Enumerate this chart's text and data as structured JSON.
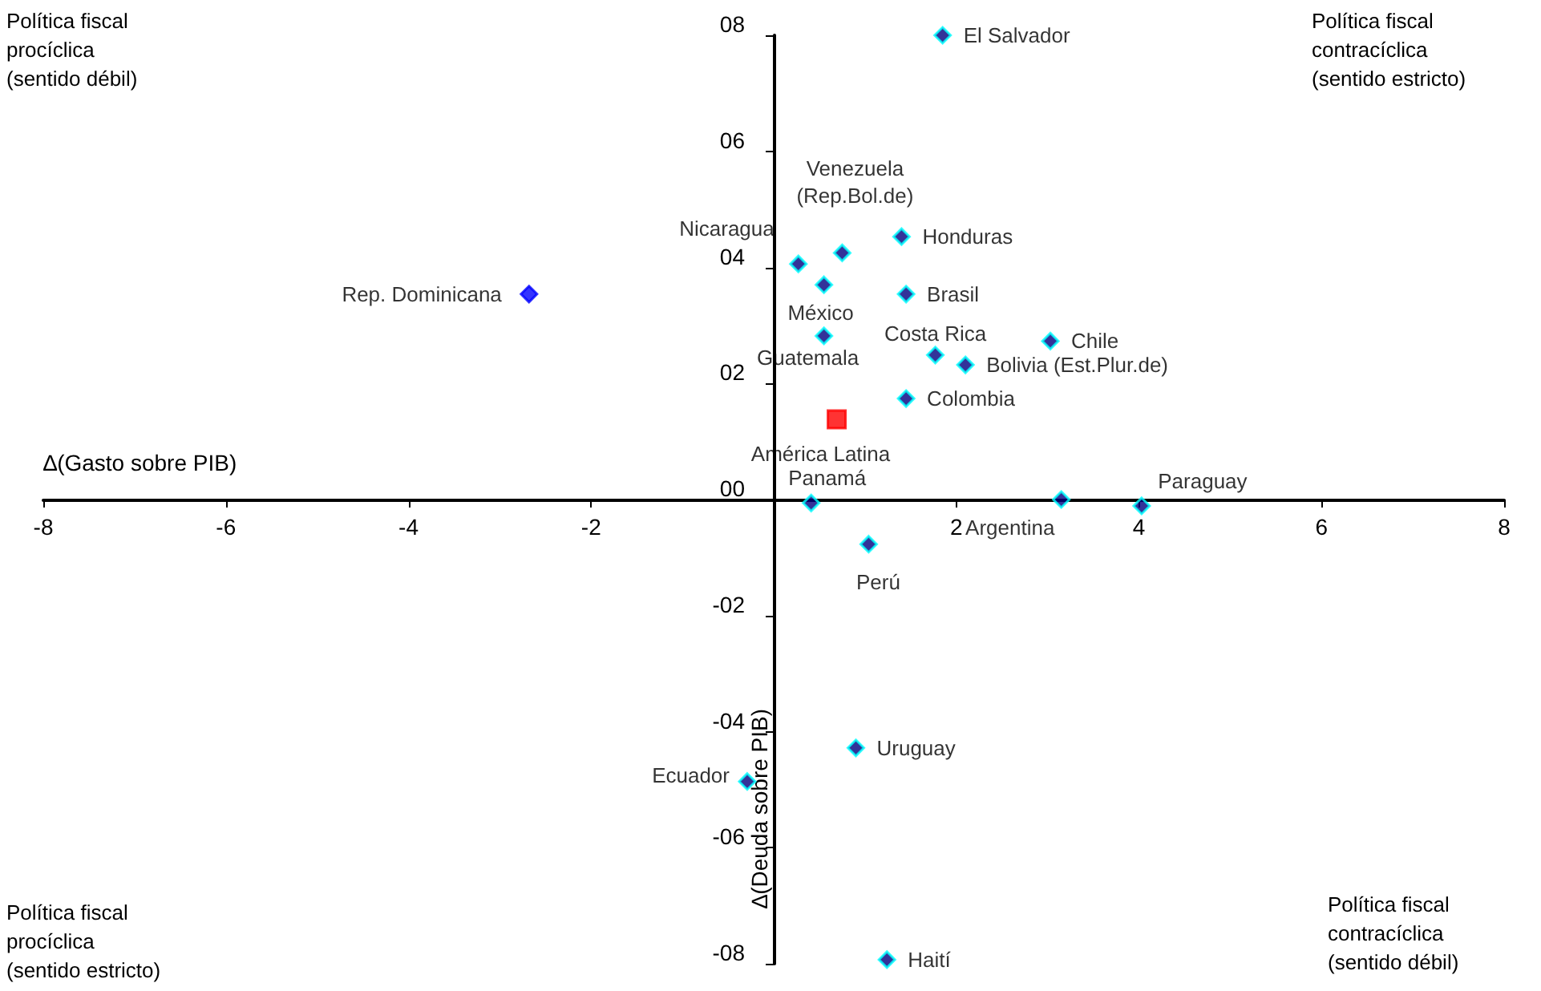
{
  "chart_data": {
    "type": "scatter",
    "xlabel": "∆(Gasto sobre PIB)",
    "ylabel": "∆(Deuda sobre PIB)",
    "xlim": [
      -8,
      8
    ],
    "xticks": [
      -8,
      -6,
      -4,
      -2,
      {
        "value": 0,
        "label": null
      },
      2,
      4,
      6,
      8
    ],
    "ylim": [
      -8,
      8
    ],
    "yticks": [
      {
        "value": -8,
        "label": "-08"
      },
      {
        "value": -6,
        "label": "-06"
      },
      {
        "value": -4,
        "label": "-04"
      },
      {
        "value": -2,
        "label": "-02"
      },
      {
        "value": 0,
        "label": "00"
      },
      {
        "value": 2,
        "label": "02"
      },
      {
        "value": 4,
        "label": "04"
      },
      {
        "value": 6,
        "label": "06"
      },
      {
        "value": 8,
        "label": "08"
      }
    ],
    "grid": false,
    "series": [
      {
        "color": "#000080",
        "marker": "diamond",
        "x": [
          1.85,
          0.75,
          0.27,
          1.4,
          0.55,
          1.45,
          0.55,
          3.03,
          1.77,
          2.1,
          1.45,
          0.41,
          3.15,
          4.03,
          1.04,
          0.9,
          -0.29,
          1.24
        ],
        "values": [
          8.0,
          4.25,
          4.06,
          4.53,
          3.7,
          3.54,
          2.82,
          2.73,
          2.49,
          2.32,
          1.74,
          -0.06,
          0,
          -0.11,
          -0.77,
          -4.28,
          -4.86,
          -7.93
        ]
      },
      {
        "color": "#0000ff",
        "marker": "diamond",
        "x": [
          -2.68
        ],
        "values": [
          3.54
        ]
      },
      {
        "color": "#ff0000",
        "marker": "square",
        "x": [
          0.69
        ],
        "values": [
          1.38
        ]
      }
    ],
    "annotations": [
      "Política fiscal procíclica (sentido débil)",
      "Política fiscal contracíclica (sentido estricto)",
      "Política fiscal procíclica (sentido estricto)",
      "Política fiscal contracíclica (sentido débil)",
      {
        "text": "El Salvador",
        "x": 1.85,
        "y": 8.0
      },
      {
        "text": "Venezuela\n(Rep.Bol.de)",
        "x": 0.75,
        "y": 4.25
      },
      {
        "text": "Nicaragua",
        "x": 0.27,
        "y": 4.06
      },
      {
        "text": "Honduras",
        "x": 1.4,
        "y": 4.53
      },
      {
        "text": "México",
        "x": 0.55,
        "y": 3.7
      },
      {
        "text": "Brasil",
        "x": 1.45,
        "y": 3.54
      },
      {
        "text": "Rep. Dominicana",
        "x": -2.68,
        "y": 3.54
      },
      {
        "text": "Guatemala",
        "x": 0.55,
        "y": 2.82
      },
      {
        "text": "Chile",
        "x": 3.03,
        "y": 2.73
      },
      {
        "text": "Costa Rica",
        "x": 1.77,
        "y": 2.49
      },
      {
        "text": "Bolivia (Est.Plur.de)",
        "x": 2.1,
        "y": 2.32
      },
      {
        "text": "Colombia",
        "x": 1.45,
        "y": 1.74
      },
      {
        "text": "América Latina",
        "x": 0.69,
        "y": 1.38
      },
      {
        "text": "Panamá",
        "x": 0.41,
        "y": -0.06
      },
      {
        "text": "Argentina",
        "x": 3.15,
        "y": 0
      },
      {
        "text": "Paraguay",
        "x": 4.03,
        "y": -0.11
      },
      {
        "text": "Perú",
        "x": 1.04,
        "y": -0.77
      },
      {
        "text": "Uruguay",
        "x": 0.9,
        "y": -4.28
      },
      {
        "text": "Ecuador",
        "x": -0.29,
        "y": -4.86
      },
      {
        "text": "Haití",
        "x": 1.24,
        "y": -7.93
      }
    ]
  }
}
